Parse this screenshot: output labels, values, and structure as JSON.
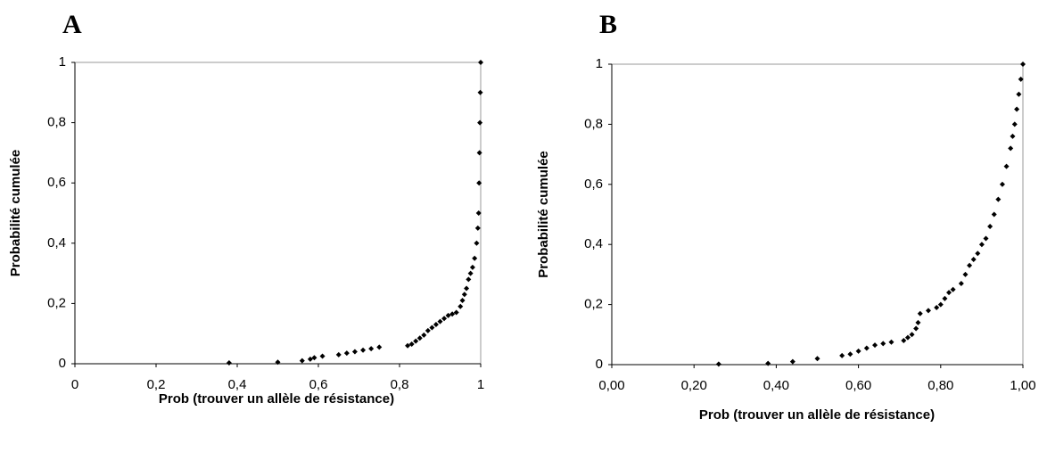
{
  "chart_data": [
    {
      "type": "scatter",
      "panel_label": "A",
      "xlabel": "Prob (trouver un allèle de résistance)",
      "ylabel": "Probabilité cumulée",
      "color": "#000000",
      "x": [
        0.38,
        0.5,
        0.56,
        0.58,
        0.59,
        0.61,
        0.65,
        0.67,
        0.69,
        0.71,
        0.73,
        0.75,
        0.82,
        0.83,
        0.84,
        0.85,
        0.86,
        0.87,
        0.88,
        0.89,
        0.9,
        0.91,
        0.92,
        0.93,
        0.94,
        0.95,
        0.955,
        0.96,
        0.965,
        0.97,
        0.975,
        0.98,
        0.985,
        0.99,
        0.993,
        0.995,
        0.996,
        0.997,
        0.998,
        0.999,
        1
      ],
      "values": [
        0.003,
        0.005,
        0.01,
        0.015,
        0.02,
        0.025,
        0.03,
        0.035,
        0.04,
        0.045,
        0.05,
        0.055,
        0.06,
        0.065,
        0.075,
        0.085,
        0.095,
        0.11,
        0.12,
        0.13,
        0.14,
        0.15,
        0.16,
        0.165,
        0.17,
        0.19,
        0.21,
        0.23,
        0.25,
        0.28,
        0.3,
        0.32,
        0.35,
        0.4,
        0.45,
        0.5,
        0.6,
        0.7,
        0.8,
        0.9,
        1
      ],
      "xlim": [
        0,
        1
      ],
      "ylim": [
        0,
        1
      ],
      "xticks": [
        0,
        {
          "value": 0.2,
          "label": "0,2"
        },
        {
          "value": 0.4,
          "label": "0,4"
        },
        {
          "value": 0.6,
          "label": "0,6"
        },
        {
          "value": 0.8,
          "label": "0,8"
        },
        1
      ],
      "yticks": [
        0,
        {
          "value": 0.2,
          "label": "0,2"
        },
        {
          "value": 0.4,
          "label": "0,4"
        },
        {
          "value": 0.6,
          "label": "0,6"
        },
        {
          "value": 0.8,
          "label": "0,8"
        },
        1
      ]
    },
    {
      "type": "scatter",
      "panel_label": "B",
      "xlabel": "Prob (trouver un allèle de résistance)",
      "ylabel": "Probabilité cumulée",
      "color": "#000000",
      "x": [
        0.26,
        0.38,
        0.44,
        0.5,
        0.56,
        0.58,
        0.6,
        0.62,
        0.64,
        0.66,
        0.68,
        0.71,
        0.72,
        0.73,
        0.74,
        0.745,
        0.75,
        0.77,
        0.79,
        0.8,
        0.81,
        0.82,
        0.83,
        0.85,
        0.86,
        0.87,
        0.88,
        0.89,
        0.9,
        0.91,
        0.92,
        0.93,
        0.94,
        0.95,
        0.96,
        0.97,
        0.975,
        0.98,
        0.985,
        0.99,
        0.995,
        1
      ],
      "values": [
        0.002,
        0.004,
        0.01,
        0.02,
        0.03,
        0.035,
        0.045,
        0.055,
        0.065,
        0.07,
        0.075,
        0.08,
        0.09,
        0.1,
        0.12,
        0.14,
        0.17,
        0.18,
        0.19,
        0.2,
        0.22,
        0.24,
        0.25,
        0.27,
        0.3,
        0.33,
        0.35,
        0.37,
        0.4,
        0.42,
        0.46,
        0.5,
        0.55,
        0.6,
        0.66,
        0.72,
        0.76,
        0.8,
        0.85,
        0.9,
        0.95,
        1
      ],
      "xlim": [
        0,
        1
      ],
      "ylim": [
        0,
        1
      ],
      "xticks": [
        {
          "value": 0,
          "label": "0,00"
        },
        {
          "value": 0.2,
          "label": "0,20"
        },
        {
          "value": 0.4,
          "label": "0,40"
        },
        {
          "value": 0.6,
          "label": "0,60"
        },
        {
          "value": 0.8,
          "label": "0,80"
        },
        {
          "value": 1,
          "label": "1,00"
        }
      ],
      "yticks": [
        0,
        {
          "value": 0.2,
          "label": "0,2"
        },
        {
          "value": 0.4,
          "label": "0,4"
        },
        {
          "value": 0.6,
          "label": "0,6"
        },
        {
          "value": 0.8,
          "label": "0,8"
        },
        1
      ]
    }
  ]
}
